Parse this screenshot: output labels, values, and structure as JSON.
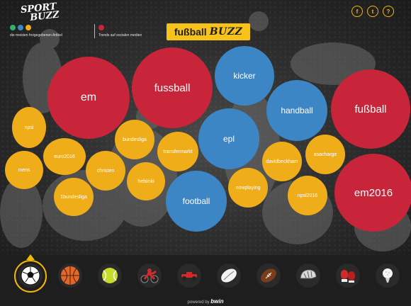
{
  "logo": {
    "line1": "SPORT",
    "line2": "BUZZ"
  },
  "legend": {
    "left_text": "die meisten freigegebenen Artikel",
    "right_text": "Trends auf sozialen medien",
    "colors": [
      "#2fb36c",
      "#3c86c6",
      "#f0ad1a",
      "#c8253a"
    ]
  },
  "title": {
    "part1": "fußball",
    "part2": "BUZZ"
  },
  "social": [
    {
      "icon": "facebook-icon",
      "glyph": "f"
    },
    {
      "icon": "twitter-icon",
      "glyph": "t"
    },
    {
      "icon": "help-icon",
      "glyph": "?"
    }
  ],
  "bubbles": [
    {
      "label": "em",
      "color": "red"
    },
    {
      "label": "fussball",
      "color": "red"
    },
    {
      "label": "kicker",
      "color": "blue"
    },
    {
      "label": "handball",
      "color": "blue"
    },
    {
      "label": "fußball",
      "color": "red"
    },
    {
      "label": "npsi",
      "color": "yellow"
    },
    {
      "label": "euro2016",
      "color": "yellow"
    },
    {
      "label": "mens",
      "color": "yellow"
    },
    {
      "label": "christen",
      "color": "yellow"
    },
    {
      "label": "1bundesliga",
      "color": "yellow"
    },
    {
      "label": "bundesliga",
      "color": "yellow"
    },
    {
      "label": "helsinki",
      "color": "yellow"
    },
    {
      "label": "transfermarkt",
      "color": "yellow"
    },
    {
      "label": "epl",
      "color": "blue"
    },
    {
      "label": "football",
      "color": "blue"
    },
    {
      "label": "nowplaying",
      "color": "yellow"
    },
    {
      "label": "davidbeckham",
      "color": "yellow"
    },
    {
      "label": "asacharge",
      "color": "yellow"
    },
    {
      "label": "npsl2016",
      "color": "yellow"
    },
    {
      "label": "em2016",
      "color": "red"
    }
  ],
  "sports": [
    {
      "name": "soccer",
      "icon": "soccer-ball-icon",
      "active": true
    },
    {
      "name": "basketball",
      "icon": "basketball-icon"
    },
    {
      "name": "tennis",
      "icon": "tennis-ball-icon"
    },
    {
      "name": "motorsport",
      "icon": "motorcycle-icon"
    },
    {
      "name": "formula",
      "icon": "race-car-icon"
    },
    {
      "name": "rugby",
      "icon": "rugby-ball-icon"
    },
    {
      "name": "american-football",
      "icon": "american-football-icon"
    },
    {
      "name": "cycling",
      "icon": "bike-helmet-icon"
    },
    {
      "name": "boxing",
      "icon": "boxing-gloves-icon"
    },
    {
      "name": "golf",
      "icon": "golf-ball-icon"
    }
  ],
  "footer": {
    "powered": "powered by",
    "brand": "bwin"
  }
}
